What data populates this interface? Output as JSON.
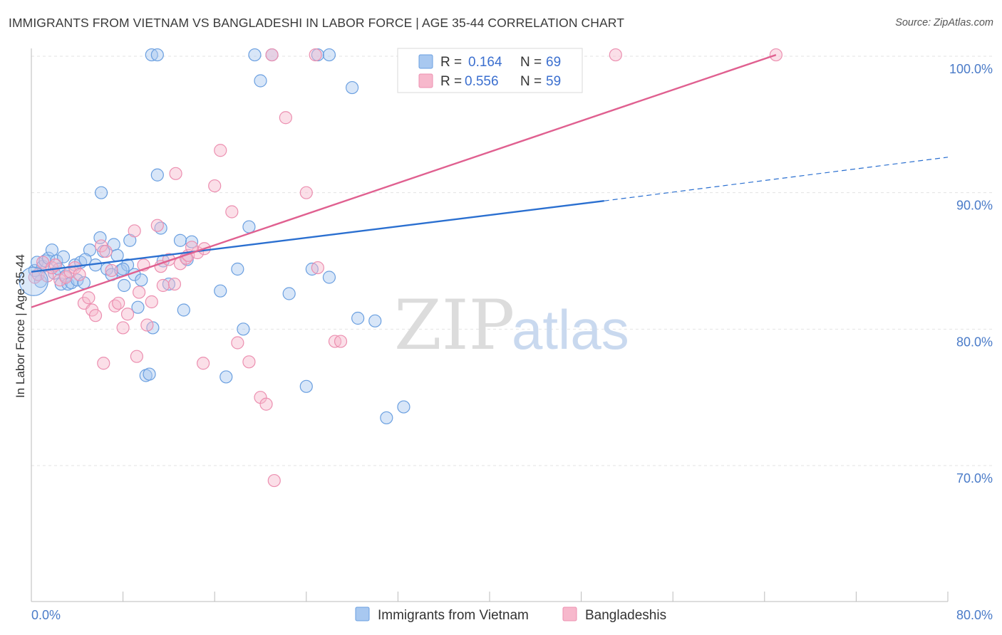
{
  "title": "IMMIGRANTS FROM VIETNAM VS BANGLADESHI IN LABOR FORCE | AGE 35-44 CORRELATION CHART",
  "source": "Source: ZipAtlas.com",
  "watermark": {
    "zip": "ZIP",
    "atlas": "atlas"
  },
  "colors": {
    "vietnam_fill": "#a8c8f0",
    "vietnam_stroke": "#6a9fe0",
    "vietnam_line": "#2a6fd0",
    "bangladeshi_fill": "#f7b8cc",
    "bangladeshi_stroke": "#ec8fb0",
    "bangladeshi_line": "#e06090",
    "tick_label": "#4a7bc8",
    "grid": "#e3e3e3"
  },
  "legend": {
    "rows": [
      {
        "r_label": "R =",
        "r_value": "0.164",
        "n_label": "N =",
        "n_value": "69"
      },
      {
        "r_label": "R =",
        "r_value": "0.556",
        "n_label": "N =",
        "n_value": "59"
      }
    ]
  },
  "chart_data": {
    "type": "scatter",
    "xlabel": "",
    "ylabel": "In Labor Force | Age 35-44",
    "xlim": [
      0,
      80
    ],
    "ylim": [
      60,
      101.5
    ],
    "x_tick_labels": [
      "0.0%",
      "80.0%"
    ],
    "y_ticks": [
      70,
      80,
      90,
      100
    ],
    "y_tick_labels": [
      "70.0%",
      "80.0%",
      "90.0%",
      "100.0%"
    ],
    "grid": true,
    "legend_position": "top-center",
    "series": [
      {
        "name": "Immigrants from Vietnam",
        "r": 0.164,
        "n": 69,
        "trend": {
          "x0": 0,
          "y0": 84.2,
          "x1": 50,
          "y1": 89.4,
          "dashed_to_x": 80,
          "dashed_to_y": 92.6
        },
        "points": [
          [
            0.3,
            84.3
          ],
          [
            0.5,
            84.9
          ],
          [
            0.8,
            83.5
          ],
          [
            1.0,
            84.6
          ],
          [
            1.2,
            85.0
          ],
          [
            1.5,
            85.2
          ],
          [
            1.8,
            85.8
          ],
          [
            2.0,
            84.1
          ],
          [
            2.2,
            85.0
          ],
          [
            2.4,
            84.4
          ],
          [
            2.6,
            83.3
          ],
          [
            2.8,
            85.3
          ],
          [
            3.0,
            83.9
          ],
          [
            3.2,
            83.3
          ],
          [
            3.5,
            83.4
          ],
          [
            3.8,
            84.7
          ],
          [
            4.0,
            83.6
          ],
          [
            4.3,
            84.9
          ],
          [
            4.6,
            83.4
          ],
          [
            5.1,
            85.8
          ],
          [
            5.6,
            84.7
          ],
          [
            6.0,
            86.7
          ],
          [
            6.3,
            85.7
          ],
          [
            6.6,
            84.4
          ],
          [
            7.0,
            84.0
          ],
          [
            7.2,
            86.2
          ],
          [
            7.5,
            85.4
          ],
          [
            7.8,
            84.3
          ],
          [
            8.1,
            83.2
          ],
          [
            8.4,
            84.7
          ],
          [
            8.6,
            86.5
          ],
          [
            9.0,
            84.0
          ],
          [
            9.3,
            81.6
          ],
          [
            9.6,
            83.6
          ],
          [
            10.0,
            76.6
          ],
          [
            10.3,
            76.7
          ],
          [
            10.6,
            80.1
          ],
          [
            11.0,
            91.3
          ],
          [
            11.3,
            87.4
          ],
          [
            11.5,
            85.0
          ],
          [
            12.0,
            83.3
          ],
          [
            13.0,
            86.5
          ],
          [
            13.3,
            81.4
          ],
          [
            13.6,
            85.1
          ],
          [
            14.0,
            86.4
          ],
          [
            16.5,
            82.8
          ],
          [
            17.0,
            76.5
          ],
          [
            18.0,
            84.4
          ],
          [
            18.5,
            80.0
          ],
          [
            19.0,
            87.5
          ],
          [
            20.0,
            98.2
          ],
          [
            8.0,
            84.4
          ],
          [
            4.7,
            85.1
          ],
          [
            6.1,
            90.0
          ],
          [
            22.5,
            82.6
          ],
          [
            24.0,
            75.8
          ],
          [
            24.5,
            84.4
          ],
          [
            26.0,
            83.8
          ],
          [
            28.5,
            80.8
          ],
          [
            30.0,
            80.6
          ],
          [
            31.0,
            73.5
          ],
          [
            32.5,
            74.3
          ],
          [
            28.0,
            97.7
          ],
          [
            10.5,
            100.1
          ],
          [
            11.0,
            100.1
          ],
          [
            19.5,
            100.1
          ],
          [
            21.0,
            100.1
          ],
          [
            25.0,
            100.1
          ],
          [
            26.0,
            100.1
          ]
        ]
      },
      {
        "name": "Bangladeshis",
        "r": 0.556,
        "n": 59,
        "trend": {
          "x0": 0,
          "y0": 81.6,
          "x1": 65,
          "y1": 100.1
        },
        "points": [
          [
            0.3,
            83.8
          ],
          [
            0.6,
            84.0
          ],
          [
            1.0,
            84.9
          ],
          [
            1.4,
            83.9
          ],
          [
            1.8,
            84.5
          ],
          [
            2.1,
            84.7
          ],
          [
            2.5,
            83.6
          ],
          [
            3.0,
            83.8
          ],
          [
            3.4,
            84.2
          ],
          [
            3.8,
            84.5
          ],
          [
            4.2,
            84.0
          ],
          [
            4.6,
            81.9
          ],
          [
            5.0,
            82.3
          ],
          [
            5.3,
            81.4
          ],
          [
            5.6,
            81.0
          ],
          [
            6.1,
            86.1
          ],
          [
            6.5,
            85.7
          ],
          [
            7.0,
            84.3
          ],
          [
            7.3,
            81.7
          ],
          [
            7.6,
            81.9
          ],
          [
            8.0,
            80.1
          ],
          [
            8.4,
            81.1
          ],
          [
            9.0,
            87.2
          ],
          [
            9.4,
            82.7
          ],
          [
            9.8,
            84.7
          ],
          [
            10.1,
            80.3
          ],
          [
            10.5,
            82.0
          ],
          [
            11.0,
            87.6
          ],
          [
            11.3,
            84.6
          ],
          [
            11.5,
            83.2
          ],
          [
            12.0,
            85.1
          ],
          [
            12.6,
            91.4
          ],
          [
            13.0,
            84.8
          ],
          [
            13.5,
            85.2
          ],
          [
            13.7,
            85.4
          ],
          [
            14.5,
            85.6
          ],
          [
            15.1,
            85.9
          ],
          [
            16.0,
            90.5
          ],
          [
            16.5,
            93.1
          ],
          [
            17.5,
            88.6
          ],
          [
            18.0,
            79.0
          ],
          [
            19.0,
            77.6
          ],
          [
            20.0,
            75.0
          ],
          [
            20.5,
            74.5
          ],
          [
            21.2,
            68.9
          ],
          [
            22.2,
            95.5
          ],
          [
            24.0,
            90.0
          ],
          [
            25.0,
            84.5
          ],
          [
            26.5,
            79.1
          ],
          [
            27.0,
            79.1
          ],
          [
            14.0,
            86.0
          ],
          [
            15.0,
            77.5
          ],
          [
            12.5,
            83.3
          ],
          [
            9.2,
            78.0
          ],
          [
            6.3,
            77.5
          ],
          [
            21.0,
            100.1
          ],
          [
            24.8,
            100.1
          ],
          [
            51.0,
            100.1
          ],
          [
            65.0,
            100.1
          ]
        ]
      }
    ]
  }
}
